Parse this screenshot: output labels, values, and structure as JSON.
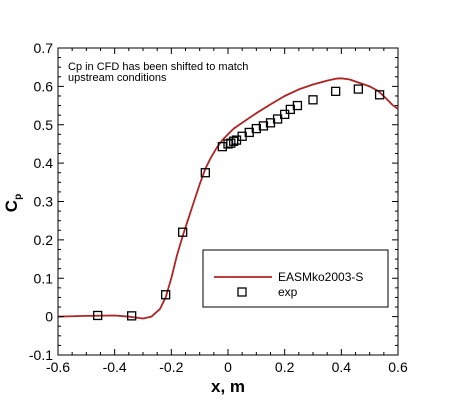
{
  "chart_data": {
    "type": "line",
    "title": "",
    "xlabel": "x, m",
    "ylabel": "C",
    "ylabel_sub": "p",
    "xlim": [
      -0.6,
      0.6
    ],
    "ylim": [
      -0.1,
      0.7
    ],
    "xticks": [
      -0.6,
      -0.4,
      -0.2,
      0,
      0.2,
      0.4,
      0.6
    ],
    "yticks": [
      -0.1,
      0,
      0.1,
      0.2,
      0.3,
      0.4,
      0.5,
      0.6,
      0.7
    ],
    "xtick_labels": [
      "-0.6",
      "-0.4",
      "-0.2",
      "0",
      "0.2",
      "0.4",
      "0.6"
    ],
    "ytick_labels": [
      "-0.1",
      "0",
      "0.1",
      "0.2",
      "0.3",
      "0.4",
      "0.5",
      "0.6",
      "0.7"
    ],
    "grid": false,
    "annotation": [
      "Cp in CFD has been shifted to match",
      "upstream conditions"
    ],
    "legend_position": "bottom-right",
    "series": [
      {
        "name": "EASMko2003-S",
        "kind": "line",
        "color": "#b22222",
        "x": [
          -0.6,
          -0.5,
          -0.4,
          -0.35,
          -0.3,
          -0.27,
          -0.24,
          -0.22,
          -0.2,
          -0.18,
          -0.16,
          -0.14,
          -0.12,
          -0.1,
          -0.08,
          -0.06,
          -0.04,
          -0.02,
          0.0,
          0.02,
          0.05,
          0.1,
          0.15,
          0.2,
          0.25,
          0.3,
          0.35,
          0.38,
          0.4,
          0.43,
          0.46,
          0.5,
          0.53,
          0.56,
          0.58,
          0.6
        ],
        "y": [
          0.0,
          0.002,
          0.003,
          0.0,
          -0.005,
          0.0,
          0.02,
          0.05,
          0.1,
          0.16,
          0.21,
          0.255,
          0.3,
          0.345,
          0.385,
          0.415,
          0.44,
          0.46,
          0.475,
          0.49,
          0.505,
          0.53,
          0.553,
          0.575,
          0.592,
          0.605,
          0.615,
          0.62,
          0.621,
          0.618,
          0.61,
          0.6,
          0.588,
          0.567,
          0.552,
          0.541
        ]
      },
      {
        "name": "exp",
        "kind": "markers",
        "marker": "square",
        "x": [
          -0.46,
          -0.34,
          -0.22,
          -0.16,
          -0.08,
          -0.02,
          0.0,
          0.01,
          0.02,
          0.03,
          0.05,
          0.075,
          0.1,
          0.125,
          0.15,
          0.175,
          0.2,
          0.22,
          0.245,
          0.3,
          0.38,
          0.46,
          0.535
        ],
        "y": [
          0.003,
          0.002,
          0.057,
          0.22,
          0.375,
          0.443,
          0.45,
          0.452,
          0.457,
          0.46,
          0.47,
          0.48,
          0.49,
          0.497,
          0.505,
          0.515,
          0.527,
          0.54,
          0.55,
          0.565,
          0.587,
          0.593,
          0.578
        ]
      }
    ]
  }
}
